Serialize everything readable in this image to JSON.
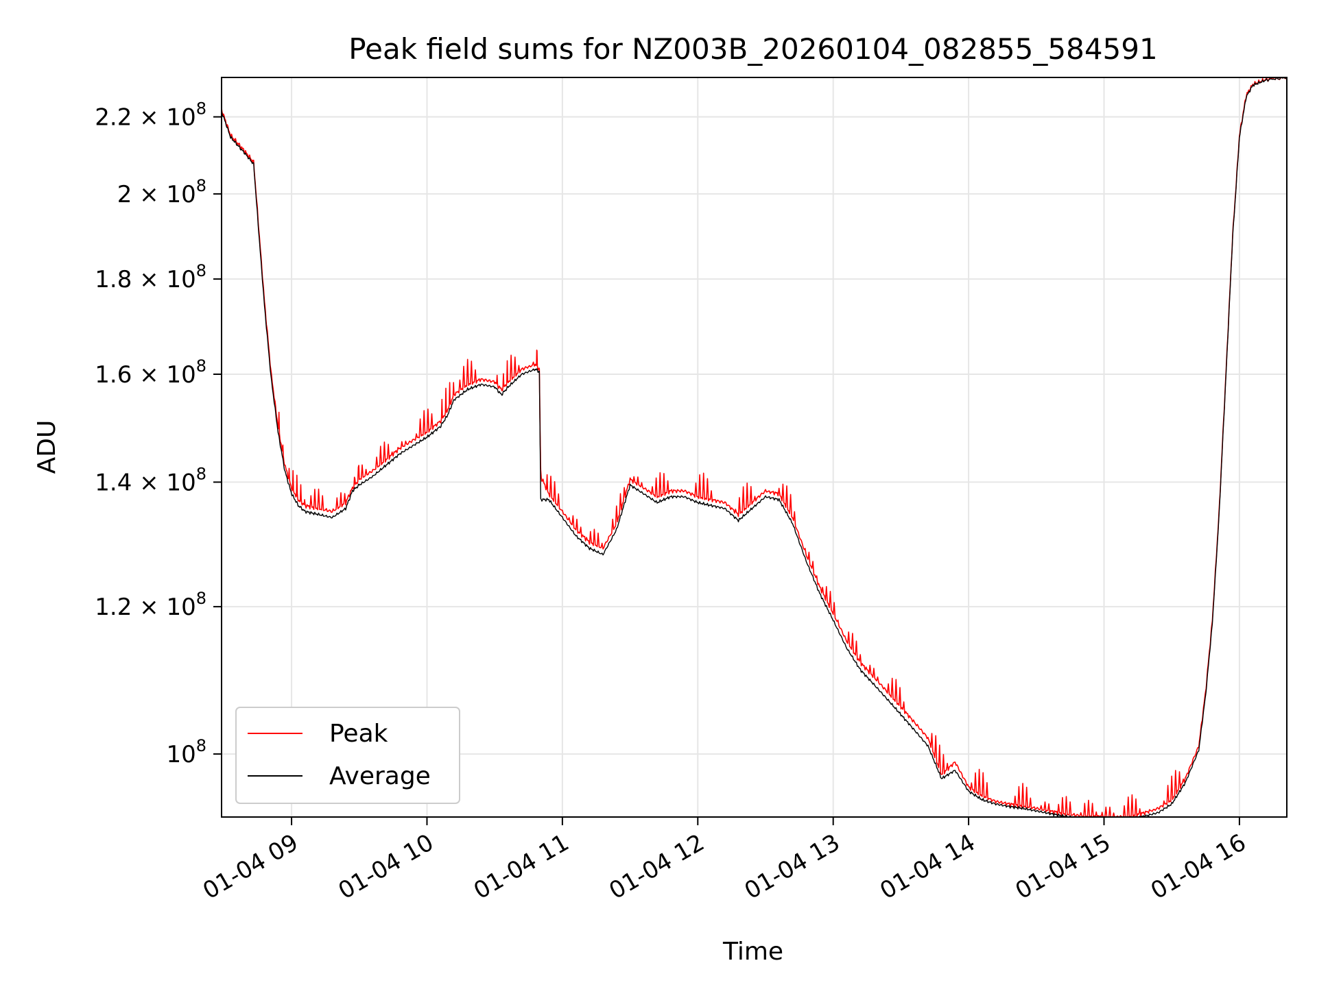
{
  "chart_data": {
    "type": "line",
    "title": "Peak field sums for NZ003B_20260104_082855_584591",
    "xlabel": "Time",
    "ylabel": "ADU",
    "y_scale": "log",
    "grid": true,
    "legend_position": "lower-left",
    "xlim_hours": [
      8.483,
      16.35
    ],
    "ylim": [
      92500000,
      231000000
    ],
    "x_ticks": [
      {
        "value": 9,
        "label": "01-04 09"
      },
      {
        "value": 10,
        "label": "01-04 10"
      },
      {
        "value": 11,
        "label": "01-04 11"
      },
      {
        "value": 12,
        "label": "01-04 12"
      },
      {
        "value": 13,
        "label": "01-04 13"
      },
      {
        "value": 14,
        "label": "01-04 14"
      },
      {
        "value": 15,
        "label": "01-04 15"
      },
      {
        "value": 16,
        "label": "01-04 16"
      }
    ],
    "y_ticks": [
      {
        "value": 100000000,
        "mant": "",
        "exp": "8"
      },
      {
        "value": 120000000,
        "mant": "1.2",
        "exp": "8"
      },
      {
        "value": 140000000,
        "mant": "1.4",
        "exp": "8"
      },
      {
        "value": 160000000,
        "mant": "1.6",
        "exp": "8"
      },
      {
        "value": 180000000,
        "mant": "1.8",
        "exp": "8"
      },
      {
        "value": 200000000,
        "mant": "2",
        "exp": "8"
      },
      {
        "value": 220000000,
        "mant": "2.2",
        "exp": "8"
      }
    ],
    "y_tick_base": "10",
    "y_tick_times": "×",
    "series": [
      {
        "name": "Peak",
        "color": "#ff0000",
        "x_hours": [
          8.483,
          8.55,
          8.6,
          8.65,
          8.72,
          8.75,
          8.8,
          8.85,
          8.9,
          8.95,
          9.0,
          9.05,
          9.1,
          9.2,
          9.3,
          9.4,
          9.45,
          9.5,
          9.6,
          9.7,
          9.8,
          9.9,
          10.0,
          10.1,
          10.15,
          10.2,
          10.3,
          10.4,
          10.5,
          10.55,
          10.6,
          10.7,
          10.8,
          10.83,
          10.84,
          10.9,
          11.0,
          11.1,
          11.2,
          11.3,
          11.4,
          11.5,
          11.6,
          11.7,
          11.8,
          11.9,
          12.0,
          12.1,
          12.2,
          12.3,
          12.4,
          12.5,
          12.6,
          12.7,
          12.8,
          12.9,
          13.0,
          13.1,
          13.2,
          13.3,
          13.4,
          13.5,
          13.6,
          13.7,
          13.8,
          13.9,
          14.0,
          14.1,
          14.2,
          14.3,
          14.4,
          14.5,
          14.6,
          14.7,
          14.8,
          14.9,
          15.0,
          15.1,
          15.2,
          15.3,
          15.4,
          15.5,
          15.6,
          15.7,
          15.75,
          15.8,
          15.85,
          15.9,
          15.95,
          16.0,
          16.05,
          16.1,
          16.2,
          16.35
        ],
        "values": [
          222000000,
          215000000,
          213000000,
          211000000,
          208000000,
          195000000,
          175000000,
          160000000,
          150000000,
          143000000,
          139000000,
          137000000,
          136000000,
          135500000,
          135000000,
          136500000,
          139000000,
          140500000,
          142000000,
          144000000,
          146000000,
          147500000,
          149000000,
          151000000,
          153000000,
          156000000,
          158000000,
          159000000,
          158500000,
          157000000,
          158500000,
          161000000,
          162000000,
          161000000,
          141000000,
          138000000,
          135000000,
          132000000,
          130000000,
          129000000,
          133000000,
          140500000,
          139000000,
          137500000,
          138500000,
          138500000,
          137500000,
          137000000,
          136500000,
          134500000,
          136500000,
          138500000,
          138000000,
          134000000,
          128000000,
          123000000,
          119000000,
          115000000,
          112000000,
          110000000,
          108000000,
          106000000,
          104000000,
          102000000,
          97500000,
          99000000,
          96000000,
          95000000,
          94300000,
          94000000,
          93800000,
          93500000,
          93200000,
          92900000,
          92700000,
          92600000,
          92500000,
          92500000,
          92600000,
          93000000,
          93500000,
          94500000,
          97000000,
          101000000,
          108000000,
          118000000,
          135000000,
          160000000,
          190000000,
          215000000,
          226000000,
          229000000,
          230500000,
          231000000
        ]
      },
      {
        "name": "Average",
        "color": "#000000",
        "x_hours": [
          8.483,
          8.55,
          8.6,
          8.65,
          8.72,
          8.75,
          8.8,
          8.85,
          8.9,
          8.95,
          9.0,
          9.05,
          9.1,
          9.2,
          9.3,
          9.4,
          9.45,
          9.5,
          9.6,
          9.7,
          9.8,
          9.9,
          10.0,
          10.1,
          10.15,
          10.2,
          10.3,
          10.4,
          10.5,
          10.55,
          10.6,
          10.7,
          10.8,
          10.83,
          10.84,
          10.9,
          11.0,
          11.1,
          11.2,
          11.3,
          11.4,
          11.5,
          11.6,
          11.7,
          11.8,
          11.9,
          12.0,
          12.1,
          12.2,
          12.3,
          12.4,
          12.5,
          12.6,
          12.7,
          12.8,
          12.9,
          13.0,
          13.1,
          13.2,
          13.3,
          13.4,
          13.5,
          13.6,
          13.7,
          13.8,
          13.9,
          14.0,
          14.1,
          14.2,
          14.3,
          14.4,
          14.5,
          14.6,
          14.7,
          14.8,
          14.9,
          15.0,
          15.1,
          15.2,
          15.3,
          15.4,
          15.5,
          15.6,
          15.7,
          15.75,
          15.8,
          15.85,
          15.9,
          15.95,
          16.0,
          16.05,
          16.1,
          16.2,
          16.35
        ],
        "values": [
          221500000,
          214500000,
          212500000,
          210500000,
          207500000,
          194000000,
          174000000,
          159000000,
          149000000,
          142000000,
          138000000,
          136000000,
          135000000,
          134500000,
          134000000,
          135500000,
          138500000,
          139500000,
          141000000,
          143000000,
          145000000,
          146500000,
          148000000,
          150000000,
          152000000,
          155000000,
          157000000,
          158000000,
          157500000,
          156000000,
          157500000,
          160000000,
          161000000,
          160500000,
          137000000,
          137000000,
          134000000,
          131000000,
          129000000,
          128000000,
          132000000,
          139500000,
          138000000,
          136500000,
          137500000,
          137500000,
          136500000,
          136000000,
          135500000,
          133500000,
          135500000,
          137500000,
          137000000,
          133000000,
          127000000,
          122000000,
          118000000,
          114000000,
          111000000,
          109000000,
          107000000,
          105000000,
          103000000,
          101000000,
          97000000,
          98000000,
          95500000,
          94500000,
          94000000,
          93700000,
          93500000,
          93200000,
          92900000,
          92600000,
          92400000,
          92300000,
          92200000,
          92200000,
          92300000,
          92600000,
          93000000,
          94000000,
          96500000,
          100500000,
          107500000,
          117500000,
          134500000,
          159500000,
          189500000,
          214500000,
          225500000,
          228800000,
          230300000,
          231000000
        ]
      }
    ]
  }
}
